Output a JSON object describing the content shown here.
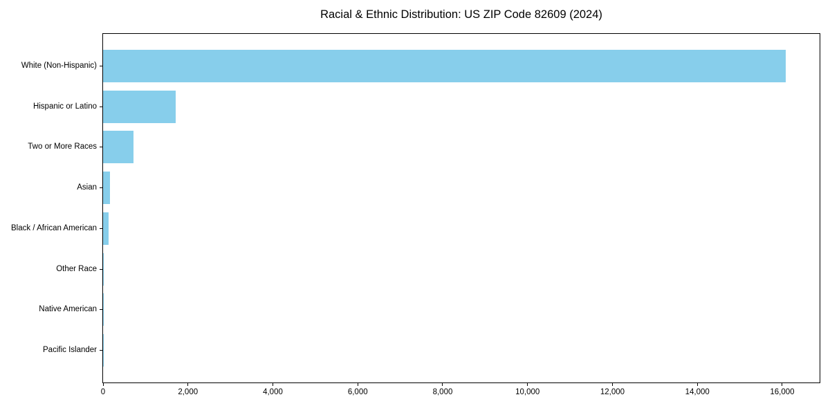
{
  "page": {
    "background": "#ffffff"
  },
  "chart_data": {
    "type": "bar",
    "orientation": "horizontal",
    "title": "Racial & Ethnic Distribution: US ZIP Code 82609 (2024)",
    "categories": [
      "White (Non-Hispanic)",
      "Hispanic or Latino",
      "Two or More Races",
      "Asian",
      "Black / African American",
      "Other Race",
      "Native American",
      "Pacific Islander"
    ],
    "values": [
      16080,
      1710,
      710,
      165,
      130,
      20,
      15,
      5
    ],
    "xlabel": "",
    "ylabel": "",
    "xlim": [
      0,
      16880
    ],
    "xticks": [
      0,
      2000,
      4000,
      6000,
      8000,
      10000,
      12000,
      14000,
      16000
    ],
    "xtick_labels": [
      "0",
      "2,000",
      "4,000",
      "6,000",
      "8,000",
      "10,000",
      "12,000",
      "14,000",
      "16,000"
    ],
    "bar_color": "#87CEEB",
    "axis_color": "#000000",
    "text_color": "#000000",
    "grid": false,
    "legend": false
  }
}
